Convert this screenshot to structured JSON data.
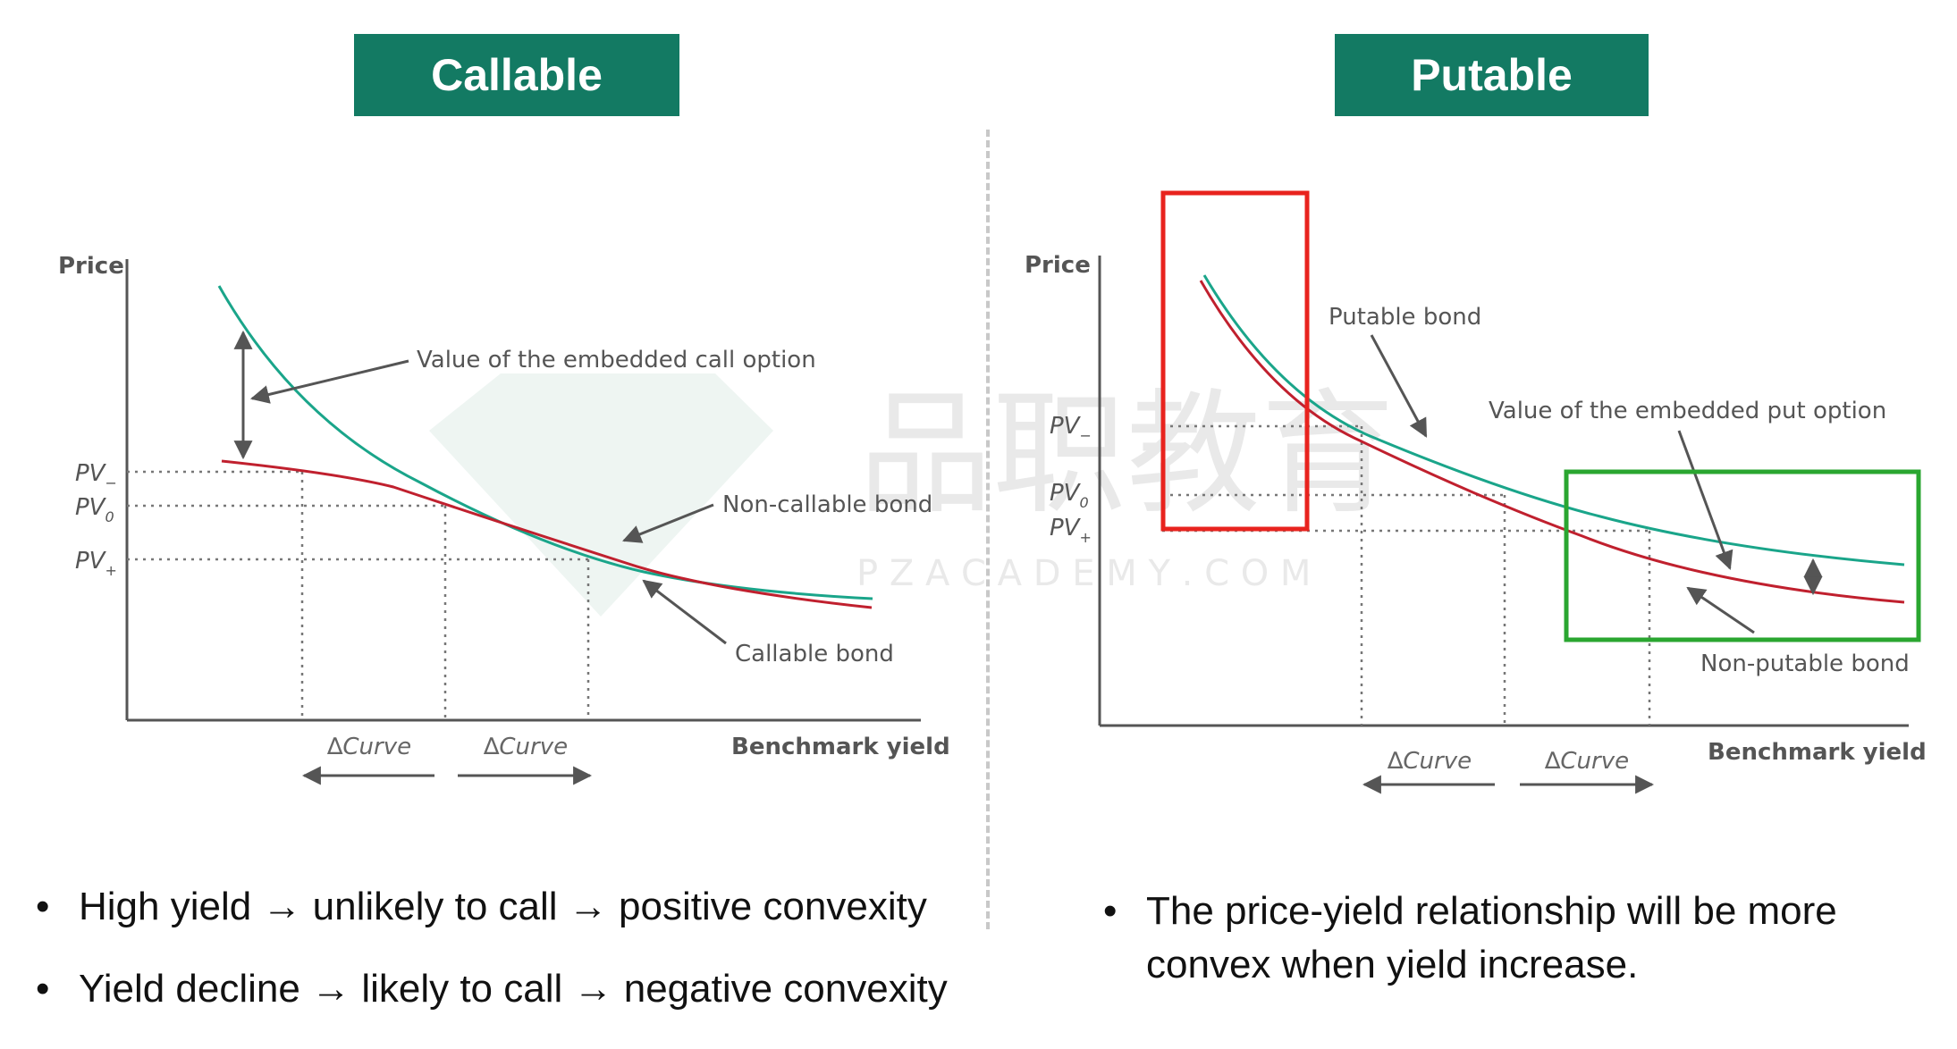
{
  "left": {
    "title": "Callable",
    "axis_y": "Price",
    "axis_x": "Benchmark yield",
    "pv_minus": "PV",
    "pv_minus_sub": "−",
    "pv_zero": "PV",
    "pv_zero_sub": "0",
    "pv_plus": "PV",
    "pv_plus_sub": "+",
    "delta_left": "∆Curve",
    "delta_right": "∆Curve",
    "label_option": "Value of the embedded call option",
    "label_noncallable": "Non-callable bond",
    "label_callable": "Callable bond"
  },
  "right": {
    "title": "Putable",
    "axis_y": "Price",
    "axis_x": "Benchmark yield",
    "pv_minus": "PV",
    "pv_minus_sub": "−",
    "pv_zero": "PV",
    "pv_zero_sub": "0",
    "pv_plus": "PV",
    "pv_plus_sub": "+",
    "delta_left": "∆Curve",
    "delta_right": "∆Curve",
    "label_putable": "Putable bond",
    "label_option": "Value of the embedded put option",
    "label_nonputable": "Non-putable bond"
  },
  "watermark": {
    "chinese": "品职教育",
    "latin": "P Z A C A D E M Y . C O M"
  },
  "bullets_left": [
    "High yield → unlikely to call → positive convexity",
    "Yield decline → likely to call → negative convexity"
  ],
  "bullets_right": [
    "The price-yield relationship will be more convex when yield increase."
  ],
  "colors": {
    "header_bg": "#137a63",
    "option_free_curve": "#1aa58a",
    "embedded_curve": "#c0202e",
    "highlight_red": "#e8231e",
    "highlight_green": "#2aa630"
  }
}
